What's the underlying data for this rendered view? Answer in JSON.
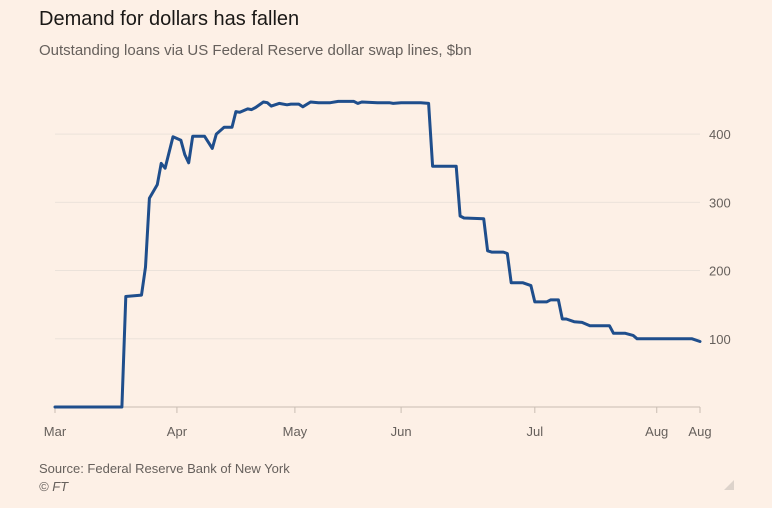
{
  "chart_data": {
    "type": "line",
    "title": "Demand for dollars has fallen",
    "subtitle": "Outstanding loans via US Federal Reserve dollar swap lines, $bn",
    "ylim": [
      0,
      450
    ],
    "y_ticks": [
      {
        "value": 100,
        "label": "100"
      },
      {
        "value": 200,
        "label": "200"
      },
      {
        "value": 300,
        "label": "300"
      },
      {
        "value": 400,
        "label": "400"
      }
    ],
    "x_ticks": [
      {
        "date": "2020-03-01",
        "label": "Mar"
      },
      {
        "date": "2020-04-01",
        "label": "Apr"
      },
      {
        "date": "2020-05-01",
        "label": "May"
      },
      {
        "date": "2020-05-28",
        "label": "Jun"
      },
      {
        "date": "2020-07-01",
        "label": "Jul"
      },
      {
        "date": "2020-08-01",
        "label": "Aug"
      },
      {
        "date": "2020-08-12",
        "label": "Aug"
      }
    ],
    "grid": true,
    "y_axis_position": "right",
    "line_color": "#1f4e8c",
    "series": [
      {
        "points": [
          [
            "2020-03-01",
            0
          ],
          [
            "2020-03-18",
            0
          ],
          [
            "2020-03-19",
            162
          ],
          [
            "2020-03-23",
            164
          ],
          [
            "2020-03-24",
            205
          ],
          [
            "2020-03-25",
            306
          ],
          [
            "2020-03-27",
            326
          ],
          [
            "2020-03-28",
            357
          ],
          [
            "2020-03-29",
            350
          ],
          [
            "2020-03-31",
            396
          ],
          [
            "2020-04-02",
            391
          ],
          [
            "2020-04-03",
            370
          ],
          [
            "2020-04-04",
            358
          ],
          [
            "2020-04-05",
            397
          ],
          [
            "2020-04-08",
            397
          ],
          [
            "2020-04-10",
            379
          ],
          [
            "2020-04-11",
            400
          ],
          [
            "2020-04-13",
            410
          ],
          [
            "2020-04-15",
            410
          ],
          [
            "2020-04-16",
            433
          ],
          [
            "2020-04-17",
            432
          ],
          [
            "2020-04-19",
            437
          ],
          [
            "2020-04-20",
            436
          ],
          [
            "2020-04-21",
            439
          ],
          [
            "2020-04-23",
            447
          ],
          [
            "2020-04-24",
            446
          ],
          [
            "2020-04-25",
            441
          ],
          [
            "2020-04-27",
            445
          ],
          [
            "2020-04-29",
            443
          ],
          [
            "2020-04-30",
            444
          ],
          [
            "2020-05-02",
            444
          ],
          [
            "2020-05-03",
            440
          ],
          [
            "2020-05-05",
            447
          ],
          [
            "2020-05-07",
            446
          ],
          [
            "2020-05-10",
            446
          ],
          [
            "2020-05-12",
            448
          ],
          [
            "2020-05-16",
            448
          ],
          [
            "2020-05-17",
            445
          ],
          [
            "2020-05-18",
            447
          ],
          [
            "2020-05-22",
            446
          ],
          [
            "2020-05-25",
            446
          ],
          [
            "2020-05-26",
            445
          ],
          [
            "2020-05-28",
            446
          ],
          [
            "2020-06-02",
            446
          ],
          [
            "2020-06-04",
            445
          ],
          [
            "2020-06-05",
            353
          ],
          [
            "2020-06-11",
            353
          ],
          [
            "2020-06-12",
            280
          ],
          [
            "2020-06-13",
            277
          ],
          [
            "2020-06-18",
            276
          ],
          [
            "2020-06-19",
            229
          ],
          [
            "2020-06-20",
            227
          ],
          [
            "2020-06-23",
            227
          ],
          [
            "2020-06-24",
            225
          ],
          [
            "2020-06-25",
            182
          ],
          [
            "2020-06-28",
            182
          ],
          [
            "2020-06-30",
            178
          ],
          [
            "2020-07-01",
            154
          ],
          [
            "2020-07-04",
            154
          ],
          [
            "2020-07-05",
            157
          ],
          [
            "2020-07-07",
            157
          ],
          [
            "2020-07-08",
            129
          ],
          [
            "2020-07-09",
            129
          ],
          [
            "2020-07-11",
            125
          ],
          [
            "2020-07-13",
            124
          ],
          [
            "2020-07-15",
            119
          ],
          [
            "2020-07-20",
            119
          ],
          [
            "2020-07-21",
            108
          ],
          [
            "2020-07-24",
            108
          ],
          [
            "2020-07-26",
            105
          ],
          [
            "2020-07-27",
            100
          ],
          [
            "2020-08-04",
            100
          ],
          [
            "2020-08-10",
            100
          ],
          [
            "2020-08-12",
            96
          ]
        ]
      }
    ]
  },
  "footer": {
    "source": "Source: Federal Reserve Bank of New York",
    "copyright": "© FT"
  }
}
